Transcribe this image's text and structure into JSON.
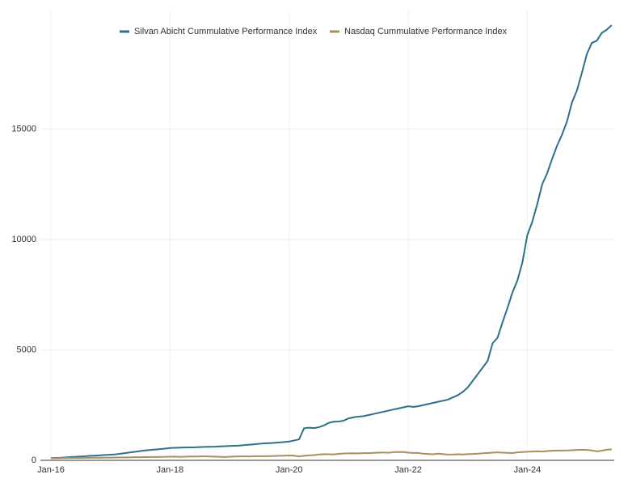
{
  "chart_data": {
    "type": "line",
    "categories": [
      "Jan-16",
      null,
      null,
      null,
      null,
      null,
      null,
      null,
      null,
      null,
      null,
      null,
      null,
      null,
      null,
      null,
      null,
      null,
      null,
      null,
      null,
      null,
      null,
      null,
      "Jan-18",
      null,
      null,
      null,
      null,
      null,
      null,
      null,
      null,
      null,
      null,
      null,
      null,
      null,
      null,
      null,
      null,
      null,
      null,
      null,
      null,
      null,
      null,
      null,
      "Jan-20",
      null,
      null,
      null,
      null,
      null,
      null,
      null,
      null,
      null,
      null,
      null,
      null,
      null,
      null,
      null,
      null,
      null,
      null,
      null,
      null,
      null,
      null,
      null,
      "Jan-22",
      null,
      null,
      null,
      null,
      null,
      null,
      null,
      null,
      null,
      null,
      null,
      null,
      null,
      null,
      null,
      null,
      null,
      null,
      null,
      null,
      null,
      null,
      null,
      "Jan-24",
      null,
      null,
      null,
      null,
      null,
      null,
      null,
      null,
      null,
      null,
      null,
      null,
      null,
      null,
      null,
      null,
      null
    ],
    "series": [
      {
        "name": "Silvan Abicht Cummulative Performance Index",
        "color": "#2e6f8e",
        "values": [
          100,
          110,
          120,
          135,
          150,
          160,
          175,
          190,
          205,
          215,
          230,
          245,
          255,
          270,
          300,
          330,
          360,
          390,
          420,
          450,
          470,
          490,
          510,
          530,
          560,
          570,
          575,
          580,
          585,
          590,
          600,
          610,
          615,
          620,
          630,
          640,
          650,
          660,
          670,
          690,
          710,
          730,
          750,
          770,
          780,
          790,
          810,
          830,
          850,
          900,
          950,
          1450,
          1480,
          1460,
          1500,
          1580,
          1700,
          1750,
          1760,
          1800,
          1900,
          1950,
          1980,
          2000,
          2050,
          2100,
          2150,
          2200,
          2250,
          2300,
          2350,
          2400,
          2450,
          2420,
          2450,
          2500,
          2550,
          2600,
          2650,
          2700,
          2750,
          2850,
          2950,
          3100,
          3300,
          3600,
          3900,
          4200,
          4500,
          5300,
          5550,
          6250,
          6900,
          7600,
          8150,
          8950,
          10200,
          10800,
          11600,
          12500,
          13000,
          13650,
          14250,
          14750,
          15350,
          16200,
          16750,
          17550,
          18400,
          18900,
          19000,
          19350,
          19500,
          19700
        ]
      },
      {
        "name": "Nasdaq Cummulative Performance Index",
        "color": "#a88f5f",
        "values": [
          100,
          98,
          102,
          104,
          106,
          108,
          112,
          114,
          116,
          118,
          120,
          122,
          125,
          128,
          132,
          134,
          138,
          140,
          142,
          146,
          150,
          152,
          156,
          158,
          165,
          168,
          162,
          166,
          172,
          175,
          180,
          182,
          175,
          168,
          160,
          150,
          165,
          172,
          178,
          184,
          176,
          186,
          190,
          188,
          192,
          198,
          206,
          212,
          220,
          210,
          180,
          205,
          225,
          240,
          265,
          280,
          275,
          270,
          295,
          310,
          315,
          320,
          318,
          330,
          325,
          340,
          350,
          355,
          345,
          370,
          375,
          380,
          350,
          335,
          340,
          300,
          290,
          275,
          300,
          285,
          260,
          265,
          275,
          265,
          285,
          290,
          300,
          320,
          335,
          350,
          360,
          350,
          340,
          330,
          360,
          375,
          390,
          400,
          410,
          400,
          420,
          435,
          440,
          445,
          450,
          460,
          470,
          480,
          470,
          450,
          410,
          440,
          480,
          500
        ]
      }
    ],
    "ylim": [
      0,
      20000
    ],
    "yticks": [
      0,
      5000,
      10000,
      15000
    ],
    "grid": true
  }
}
